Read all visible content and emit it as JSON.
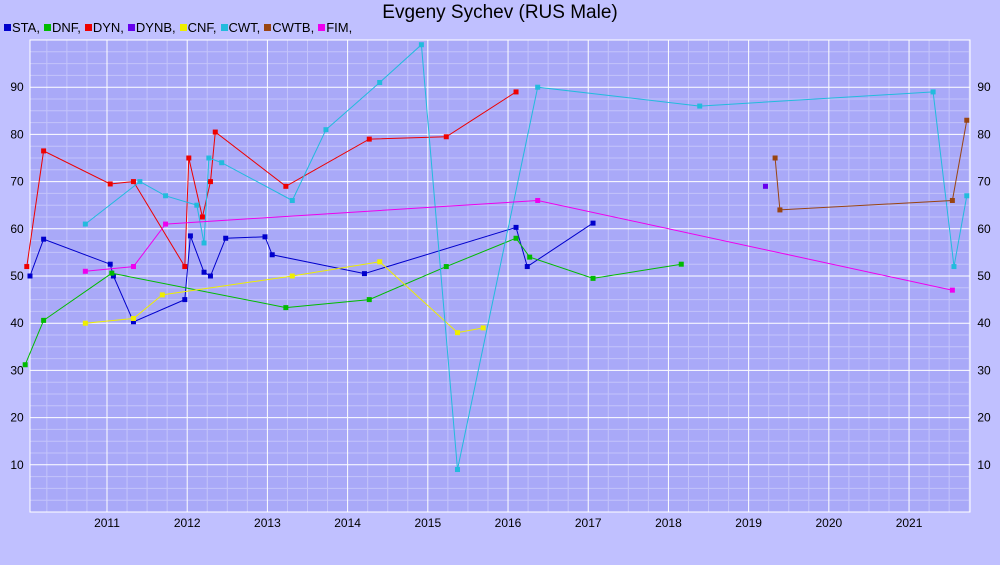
{
  "chart_data": {
    "type": "line",
    "title": "Evgeny Sychev (RUS Male)",
    "xlabel": "",
    "ylabel": "",
    "x_unit": "year",
    "xlim": [
      2010.04,
      2021.76
    ],
    "ylim": [
      0,
      100
    ],
    "x_ticks": [
      2011,
      2012,
      2013,
      2014,
      2015,
      2016,
      2017,
      2018,
      2019,
      2020,
      2021
    ],
    "y_ticks": [
      10,
      20,
      30,
      40,
      50,
      60,
      70,
      80,
      90
    ],
    "grid": true,
    "legend_position": "top-left",
    "series": [
      {
        "name": "STA,",
        "color": "#0000cc",
        "points": [
          [
            2010.04,
            50
          ],
          [
            2010.21,
            57.8
          ],
          [
            2011.04,
            52.5
          ],
          [
            2011.08,
            50
          ],
          [
            2011.33,
            40.3
          ],
          [
            2011.97,
            45
          ],
          [
            2012.04,
            58.5
          ],
          [
            2012.21,
            50.8
          ],
          [
            2012.29,
            50
          ],
          [
            2012.48,
            58
          ],
          [
            2012.97,
            58.3
          ],
          [
            2013.06,
            54.5
          ],
          [
            2014.21,
            50.5
          ],
          [
            2016.1,
            60.3
          ],
          [
            2016.24,
            52
          ],
          [
            2017.06,
            61.2
          ]
        ]
      },
      {
        "name": "DNF,",
        "color": "#00bb00",
        "points": [
          [
            2009.98,
            31.2
          ],
          [
            2010.21,
            40.6
          ],
          [
            2011.06,
            50.6
          ],
          [
            2013.23,
            43.3
          ],
          [
            2014.27,
            45
          ],
          [
            2015.23,
            52
          ],
          [
            2016.1,
            58
          ],
          [
            2016.27,
            54
          ],
          [
            2017.06,
            49.5
          ],
          [
            2018.16,
            52.5
          ]
        ]
      },
      {
        "name": "DYN,",
        "color": "#ee0000",
        "points": [
          [
            2010.0,
            52
          ],
          [
            2010.21,
            76.5
          ],
          [
            2011.04,
            69.5
          ],
          [
            2011.33,
            70
          ],
          [
            2011.97,
            52
          ],
          [
            2012.02,
            75
          ],
          [
            2012.19,
            62.5
          ],
          [
            2012.29,
            70
          ],
          [
            2012.35,
            80.5
          ],
          [
            2013.23,
            69
          ],
          [
            2014.27,
            79
          ],
          [
            2015.23,
            79.5
          ],
          [
            2016.1,
            89
          ]
        ]
      },
      {
        "name": "DYNB,",
        "color": "#6600ee",
        "points": [
          [
            2019.21,
            69
          ]
        ]
      },
      {
        "name": "CNF,",
        "color": "#eeee00",
        "points": [
          [
            2010.73,
            40
          ],
          [
            2011.33,
            41
          ],
          [
            2011.69,
            46
          ],
          [
            2013.31,
            50
          ],
          [
            2014.4,
            53
          ],
          [
            2015.37,
            38
          ],
          [
            2015.69,
            39
          ]
        ]
      },
      {
        "name": "CWT,",
        "color": "#22bbdd",
        "points": [
          [
            2010.73,
            61
          ],
          [
            2011.41,
            70
          ],
          [
            2011.73,
            67
          ],
          [
            2012.12,
            65
          ],
          [
            2012.21,
            57
          ],
          [
            2012.27,
            75
          ],
          [
            2012.43,
            74
          ],
          [
            2013.31,
            66
          ],
          [
            2013.73,
            81
          ],
          [
            2014.4,
            91
          ],
          [
            2014.92,
            99
          ],
          [
            2015.37,
            9
          ],
          [
            2016.37,
            90
          ],
          [
            2018.39,
            86
          ],
          [
            2021.3,
            89
          ],
          [
            2021.56,
            52
          ],
          [
            2021.72,
            67
          ]
        ]
      },
      {
        "name": "CWTB,",
        "color": "#994411",
        "points": [
          [
            2019.33,
            75
          ],
          [
            2019.39,
            64
          ],
          [
            2021.54,
            66
          ],
          [
            2021.72,
            83
          ]
        ]
      },
      {
        "name": "FIM,",
        "color": "#ee00ee",
        "points": [
          [
            2010.73,
            51
          ],
          [
            2011.33,
            52
          ],
          [
            2011.73,
            61
          ],
          [
            2016.37,
            66
          ],
          [
            2021.54,
            47
          ]
        ]
      }
    ]
  }
}
